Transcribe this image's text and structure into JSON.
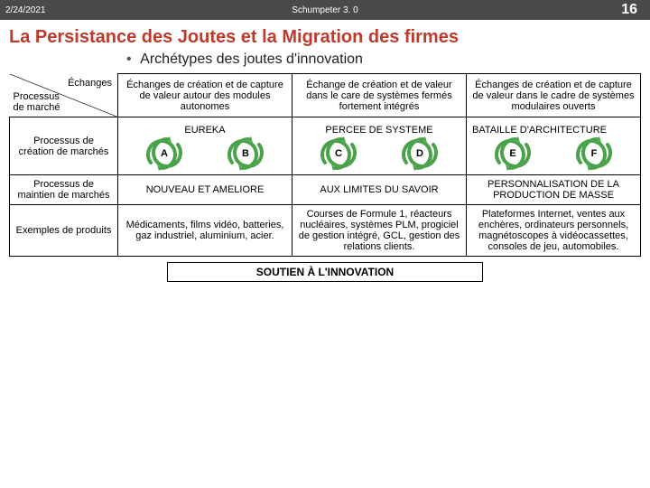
{
  "header": {
    "date": "2/24/2021",
    "title": "Schumpeter 3. 0",
    "page": "16"
  },
  "title": "La Persistance des Joutes et la Migration des firmes",
  "subtitle": "Archétypes des joutes d'innovation",
  "corner": {
    "top": "Échanges",
    "left": "Processus\nde marché"
  },
  "colHeaders": [
    "Échanges de création et de capture de valeur autour des modules autonomes",
    "Échange de création  et de valeur dans le care de systèmes fermés fortement intégrés",
    "Échanges de création et de capture de valeur dans le cadre de systèmes modulaires ouverts"
  ],
  "rowLabels": [
    "Processus de création de marchés",
    "Processus de maintien de marchés",
    "Exemples de produits"
  ],
  "archetypes": [
    {
      "name": "EUREKA",
      "badges": [
        "A",
        "B"
      ],
      "color": "#4aa24a"
    },
    {
      "name": "PERCEE DE SYSTEME",
      "badges": [
        "C",
        "D"
      ],
      "color": "#4aa24a"
    },
    {
      "name": "BATAILLE D'ARCHITECTURE",
      "badges": [
        "E",
        "F"
      ],
      "color": "#4aa24a"
    }
  ],
  "row2": [
    "NOUVEAU ET AMELIORE",
    "AUX LIMITES DU SAVOIR",
    "PERSONNALISATION DE LA PRODUCTION DE MASSE"
  ],
  "row3": [
    "Médicaments, films vidéo, batteries, gaz industriel, aluminium, acier.",
    "Courses de Formule 1, réacteurs nucléaires, systèmes PLM, progiciel de gestion intégré, GCL, gestion des relations clients.",
    "Plateformes Internet, ventes aux enchères, ordinateurs personnels, magnétoscopes à vidéocassettes, consoles de jeu, automobiles."
  ],
  "support": "SOUTIEN À L'INNOVATION"
}
